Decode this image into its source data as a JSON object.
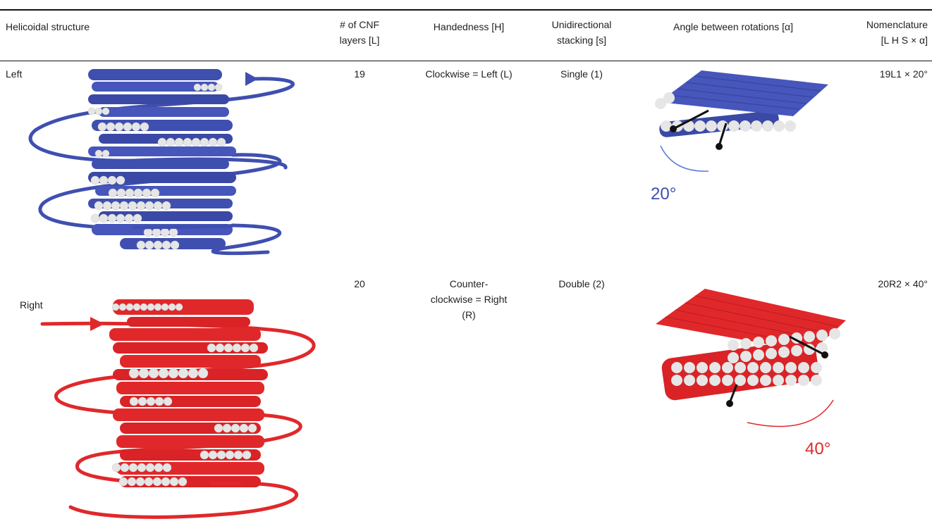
{
  "table": {
    "headers": [
      [
        "Helicoidal structure"
      ],
      [
        "# of CNF",
        "layers [L]"
      ],
      [
        "Handedness [H]"
      ],
      [
        "Unidirectional",
        "stacking [s]"
      ],
      [
        "Angle between rotations [α]"
      ],
      [
        "Nomenclature",
        "[L H S × α]"
      ]
    ],
    "rows": [
      {
        "structure": "Left",
        "layers": "19",
        "handedness": [
          "Clockwise = Left (L)"
        ],
        "stacking": "Single (1)",
        "angle_label": "20°",
        "nomenclature": "19L1 × 20°",
        "color": "#3f4fb0"
      },
      {
        "structure": "Right",
        "layers": "20",
        "handedness": [
          "Counter-",
          "clockwise = Right",
          "(R)"
        ],
        "stacking": "Double (2)",
        "angle_label": "40°",
        "nomenclature": "20R2 × 40°",
        "color": "#e0282b"
      }
    ]
  }
}
